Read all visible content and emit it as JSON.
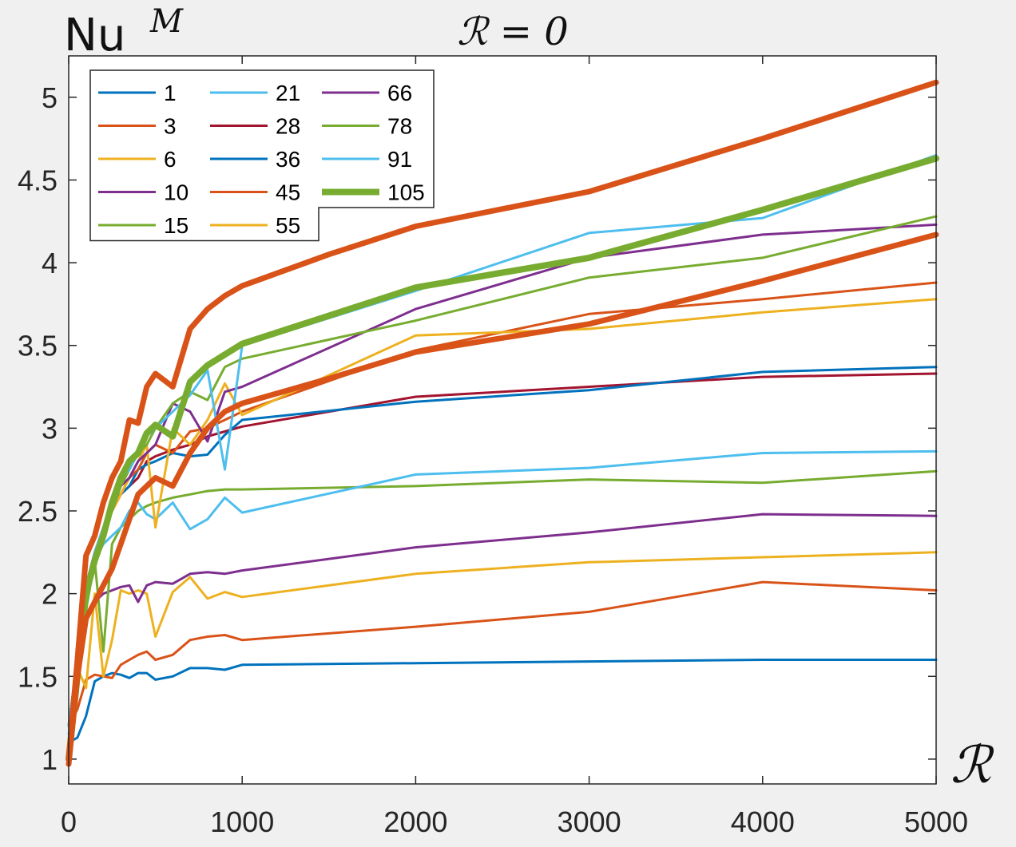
{
  "chart_data": {
    "type": "line",
    "title": "ℛ = 0",
    "ylabel_main": "Nu",
    "ylabel_sup": "M",
    "xlabel": "ℛ",
    "xlim": [
      0,
      5000
    ],
    "ylim": [
      0.85,
      5.25
    ],
    "xticks": [
      0,
      1000,
      2000,
      3000,
      4000,
      5000
    ],
    "xtick_labels": [
      "0",
      "1000",
      "2000",
      "3000",
      "4000",
      "5000"
    ],
    "yticks": [
      1,
      1.5,
      2,
      2.5,
      3,
      3.5,
      4,
      4.5,
      5
    ],
    "ytick_labels": [
      "1",
      "1.5",
      "2",
      "2.5",
      "3",
      "3.5",
      "4",
      "4.5",
      "5"
    ],
    "legend_position": "top-left",
    "legend_columns": 3,
    "series": [
      {
        "name": "1",
        "color": "#0072BD",
        "width": 3,
        "x": [
          0,
          50,
          100,
          150,
          200,
          250,
          300,
          350,
          400,
          450,
          500,
          600,
          700,
          800,
          900,
          1000,
          2000,
          3000,
          4000,
          5000
        ],
        "y": [
          1.1,
          1.13,
          1.26,
          1.47,
          1.5,
          1.52,
          1.51,
          1.49,
          1.52,
          1.52,
          1.48,
          1.5,
          1.55,
          1.55,
          1.54,
          1.57,
          1.58,
          1.59,
          1.6,
          1.6
        ]
      },
      {
        "name": "3",
        "color": "#D95319",
        "width": 3,
        "x": [
          0,
          50,
          100,
          150,
          200,
          250,
          300,
          350,
          400,
          450,
          500,
          600,
          700,
          800,
          900,
          1000,
          2000,
          3000,
          4000,
          5000
        ],
        "y": [
          1.2,
          1.3,
          1.48,
          1.51,
          1.5,
          1.49,
          1.57,
          1.6,
          1.63,
          1.65,
          1.6,
          1.63,
          1.72,
          1.74,
          1.75,
          1.72,
          1.8,
          1.89,
          2.07,
          2.02
        ]
      },
      {
        "name": "6",
        "color": "#EDB120",
        "width": 3,
        "x": [
          0,
          50,
          100,
          150,
          200,
          250,
          300,
          350,
          400,
          450,
          500,
          600,
          700,
          800,
          900,
          1000,
          2000,
          3000,
          4000,
          5000
        ],
        "y": [
          1.2,
          1.55,
          1.43,
          2.0,
          1.5,
          1.72,
          2.02,
          2.0,
          2.02,
          2.0,
          1.74,
          2.01,
          2.1,
          1.97,
          2.01,
          1.98,
          2.12,
          2.19,
          2.22,
          2.25
        ]
      },
      {
        "name": "10",
        "color": "#7E2F8E",
        "width": 3,
        "x": [
          0,
          50,
          100,
          150,
          200,
          250,
          300,
          350,
          400,
          450,
          500,
          600,
          700,
          800,
          900,
          1000,
          2000,
          3000,
          4000,
          5000
        ],
        "y": [
          1.2,
          1.5,
          1.85,
          1.95,
          2.0,
          2.02,
          2.04,
          2.05,
          1.95,
          2.05,
          2.07,
          2.06,
          2.12,
          2.13,
          2.12,
          2.14,
          2.28,
          2.37,
          2.48,
          2.47
        ]
      },
      {
        "name": "15",
        "color": "#77AC30",
        "width": 3,
        "x": [
          0,
          50,
          100,
          150,
          200,
          250,
          300,
          350,
          400,
          450,
          500,
          600,
          700,
          800,
          900,
          1000,
          2000,
          3000,
          4000,
          5000
        ],
        "y": [
          1.1,
          1.5,
          1.9,
          2.2,
          1.65,
          2.3,
          2.4,
          2.45,
          2.5,
          2.53,
          2.55,
          2.58,
          2.6,
          2.62,
          2.63,
          2.63,
          2.65,
          2.69,
          2.67,
          2.74
        ]
      },
      {
        "name": "21",
        "color": "#4DBEEE",
        "width": 3,
        "x": [
          0,
          50,
          100,
          150,
          200,
          250,
          300,
          350,
          400,
          450,
          500,
          600,
          700,
          800,
          900,
          1000,
          2000,
          3000,
          4000,
          5000
        ],
        "y": [
          1.15,
          1.6,
          2.0,
          2.2,
          2.3,
          2.35,
          2.4,
          2.5,
          2.55,
          2.48,
          2.45,
          2.55,
          2.39,
          2.45,
          2.58,
          2.49,
          2.72,
          2.76,
          2.85,
          2.86
        ]
      },
      {
        "name": "28",
        "color": "#A2142F",
        "width": 3,
        "x": [
          0,
          50,
          100,
          150,
          200,
          250,
          300,
          350,
          400,
          450,
          500,
          600,
          700,
          800,
          900,
          1000,
          2000,
          3000,
          4000,
          5000
        ],
        "y": [
          1.2,
          1.6,
          2.0,
          2.2,
          2.35,
          2.5,
          2.6,
          2.65,
          2.7,
          2.8,
          2.83,
          2.87,
          2.9,
          2.95,
          2.98,
          3.01,
          3.19,
          3.25,
          3.31,
          3.33
        ]
      },
      {
        "name": "36",
        "color": "#0072BD",
        "width": 3,
        "x": [
          0,
          50,
          100,
          150,
          200,
          250,
          300,
          350,
          400,
          450,
          500,
          600,
          700,
          800,
          900,
          1000,
          2000,
          3000,
          4000,
          5000
        ],
        "y": [
          1.2,
          1.6,
          2.05,
          2.25,
          2.4,
          2.55,
          2.6,
          2.65,
          2.75,
          2.78,
          2.8,
          2.85,
          2.83,
          2.84,
          2.96,
          3.05,
          3.16,
          3.23,
          3.34,
          3.37
        ]
      },
      {
        "name": "45",
        "color": "#D95319",
        "width": 3,
        "x": [
          0,
          50,
          100,
          150,
          200,
          250,
          300,
          350,
          400,
          450,
          500,
          600,
          700,
          800,
          900,
          1000,
          2000,
          3000,
          4000,
          5000
        ],
        "y": [
          1.2,
          1.6,
          2.0,
          2.25,
          2.4,
          2.5,
          2.6,
          2.7,
          2.75,
          2.85,
          2.9,
          2.85,
          2.98,
          3.0,
          3.05,
          3.1,
          3.47,
          3.69,
          3.78,
          3.88
        ]
      },
      {
        "name": "55",
        "color": "#EDB120",
        "width": 3,
        "x": [
          0,
          50,
          100,
          150,
          200,
          250,
          300,
          350,
          400,
          450,
          500,
          600,
          700,
          800,
          900,
          1000,
          2000,
          3000,
          4000,
          5000
        ],
        "y": [
          1.2,
          1.6,
          2.0,
          2.25,
          2.35,
          2.5,
          2.6,
          2.7,
          2.8,
          2.9,
          2.4,
          3.0,
          2.9,
          3.05,
          3.27,
          3.08,
          3.56,
          3.6,
          3.7,
          3.78
        ]
      },
      {
        "name": "66",
        "color": "#7E2F8E",
        "width": 3,
        "x": [
          0,
          50,
          100,
          150,
          200,
          250,
          300,
          350,
          400,
          450,
          500,
          600,
          700,
          800,
          900,
          1000,
          2000,
          3000,
          4000,
          5000
        ],
        "y": [
          1.2,
          1.6,
          2.0,
          2.2,
          2.4,
          2.5,
          2.65,
          2.7,
          2.8,
          2.85,
          2.9,
          3.15,
          3.1,
          2.92,
          3.22,
          3.25,
          3.72,
          4.03,
          4.17,
          4.23
        ]
      },
      {
        "name": "78",
        "color": "#77AC30",
        "width": 3,
        "x": [
          0,
          50,
          100,
          150,
          200,
          250,
          300,
          350,
          400,
          450,
          500,
          600,
          700,
          800,
          900,
          1000,
          2000,
          3000,
          4000,
          5000
        ],
        "y": [
          1.2,
          1.6,
          2.0,
          2.2,
          2.35,
          2.5,
          2.65,
          2.75,
          2.85,
          2.9,
          3.0,
          3.15,
          3.22,
          3.17,
          3.37,
          3.42,
          3.65,
          3.91,
          4.03,
          4.28
        ]
      },
      {
        "name": "91",
        "color": "#4DBEEE",
        "width": 3,
        "x": [
          0,
          50,
          100,
          150,
          200,
          250,
          300,
          350,
          400,
          450,
          500,
          600,
          700,
          800,
          900,
          1000,
          2000,
          3000,
          4000,
          5000
        ],
        "y": [
          1.2,
          1.6,
          2.0,
          2.25,
          2.4,
          2.55,
          2.7,
          2.75,
          2.85,
          2.95,
          3.0,
          3.1,
          3.2,
          3.35,
          2.75,
          3.5,
          3.83,
          4.18,
          4.27,
          4.65
        ]
      },
      {
        "name": "105",
        "color": "#77AC30",
        "width": 8,
        "x": [
          0,
          50,
          100,
          150,
          200,
          250,
          300,
          350,
          400,
          450,
          500,
          600,
          700,
          800,
          1000,
          2000,
          3000,
          4000,
          5000
        ],
        "y": [
          1.0,
          1.5,
          2.0,
          2.2,
          2.35,
          2.55,
          2.7,
          2.8,
          2.85,
          2.97,
          3.02,
          2.95,
          3.28,
          3.38,
          3.51,
          3.85,
          4.03,
          4.32,
          4.63
        ]
      },
      {
        "name": "",
        "color": "#D95319",
        "width": 7,
        "x": [
          0,
          50,
          100,
          150,
          200,
          250,
          300,
          350,
          400,
          450,
          500,
          600,
          700,
          800,
          900,
          1000,
          1500,
          2000,
          3000,
          4000,
          5000
        ],
        "y": [
          0.97,
          1.5,
          1.85,
          1.95,
          2.05,
          2.15,
          2.3,
          2.45,
          2.6,
          2.65,
          2.7,
          2.65,
          2.85,
          3.0,
          3.1,
          3.15,
          3.3,
          3.46,
          3.63,
          3.89,
          4.17
        ]
      },
      {
        "name": "",
        "color": "#D95319",
        "width": 7,
        "x": [
          0,
          50,
          100,
          150,
          200,
          250,
          300,
          350,
          400,
          450,
          500,
          600,
          700,
          800,
          900,
          1000,
          1500,
          2000,
          3000,
          4000,
          5000
        ],
        "y": [
          1.0,
          1.6,
          2.23,
          2.35,
          2.55,
          2.7,
          2.8,
          3.05,
          3.03,
          3.25,
          3.33,
          3.25,
          3.6,
          3.72,
          3.8,
          3.86,
          4.05,
          4.22,
          4.43,
          4.75,
          5.09
        ]
      }
    ]
  }
}
